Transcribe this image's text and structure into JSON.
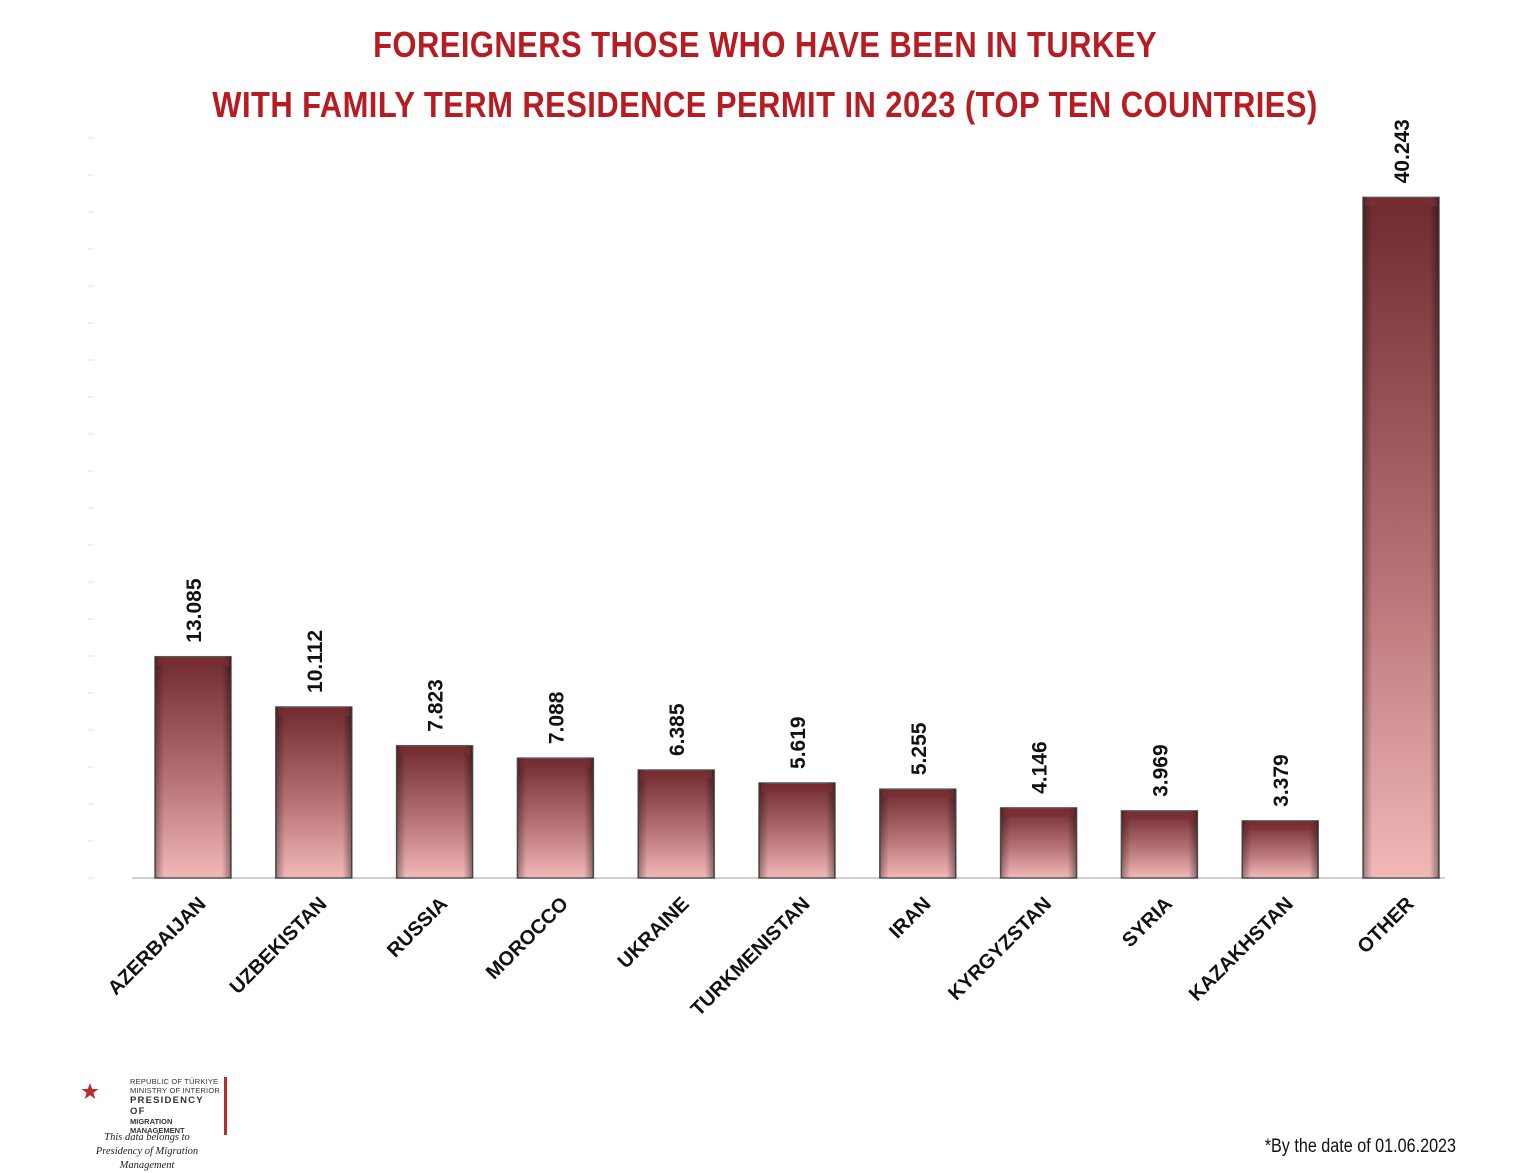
{
  "title_line1": "FOREIGNERS THOSE WHO HAVE BEEN IN TURKEY",
  "title_line2": "WITH FAMILY TERM RESIDENCE PERMIT IN 2023 (TOP TEN COUNTRIES)",
  "footnote": "*By the date of 01.06.2023",
  "logo": {
    "line1": "REPUBLIC OF TÜRKIYE",
    "line2": "MINISTRY OF INTERIOR",
    "line3": "PRESIDENCY OF",
    "line4": "MIGRATION MANAGEMENT",
    "caption1": "This data belongs to",
    "caption2": "Presidency of Migration Management"
  },
  "colors": {
    "title": "#b71c22",
    "bar_top": "#6e2a2e",
    "bar_bottom": "#f2b8b8"
  },
  "chart_data": {
    "type": "bar",
    "categories": [
      "AZERBAIJAN",
      "UZBEKISTAN",
      "RUSSIA",
      "MOROCCO",
      "UKRAINE",
      "TURKMENISTAN",
      "IRAN",
      "KYRGYZSTAN",
      "SYRIA",
      "KAZAKHSTAN",
      "OTHER"
    ],
    "values": [
      13085,
      10112,
      7823,
      7088,
      6385,
      5619,
      5255,
      4146,
      3969,
      3379,
      40243
    ],
    "value_labels": [
      "13.085",
      "10.112",
      "7.823",
      "7.088",
      "6.385",
      "5.619",
      "5.255",
      "4.146",
      "3.969",
      "3.379",
      "40.243"
    ],
    "ylim": [
      0,
      46000
    ],
    "grid": false,
    "legend": "none",
    "value_labels_rotated": true
  }
}
